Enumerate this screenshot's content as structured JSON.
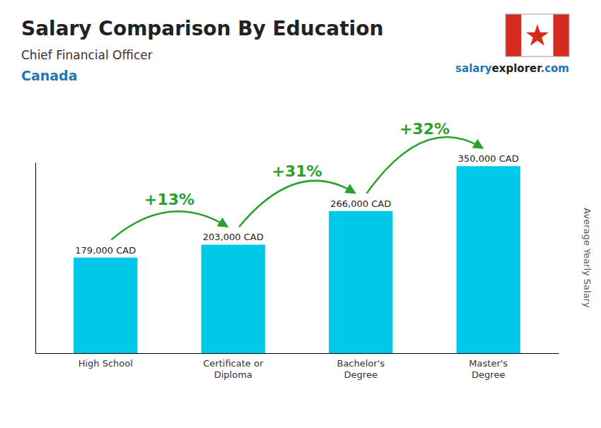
{
  "chart_data": {
    "type": "bar",
    "title": "Salary Comparison By Education",
    "subtitle": "Chief Financial Officer",
    "ylabel": "Average Yearly Salary",
    "annotations": {
      "country": "Canada",
      "site": [
        "salary",
        "explorer",
        ".com"
      ],
      "change_labels": [
        "+13%",
        "+31%",
        "+32%"
      ]
    },
    "categories": [
      "High School",
      "Certificate or\nDiploma",
      "Bachelor's\nDegree",
      "Master's\nDegree"
    ],
    "values": [
      179000,
      203000,
      266000,
      350000
    ],
    "value_labels": [
      "179,000 CAD",
      "203,000 CAD",
      "266,000 CAD",
      "350,000 CAD"
    ],
    "data_labels": true,
    "color": "#00c8e8",
    "ylim": [
      0,
      357000
    ],
    "yticks": [],
    "tick_labels": "x"
  }
}
